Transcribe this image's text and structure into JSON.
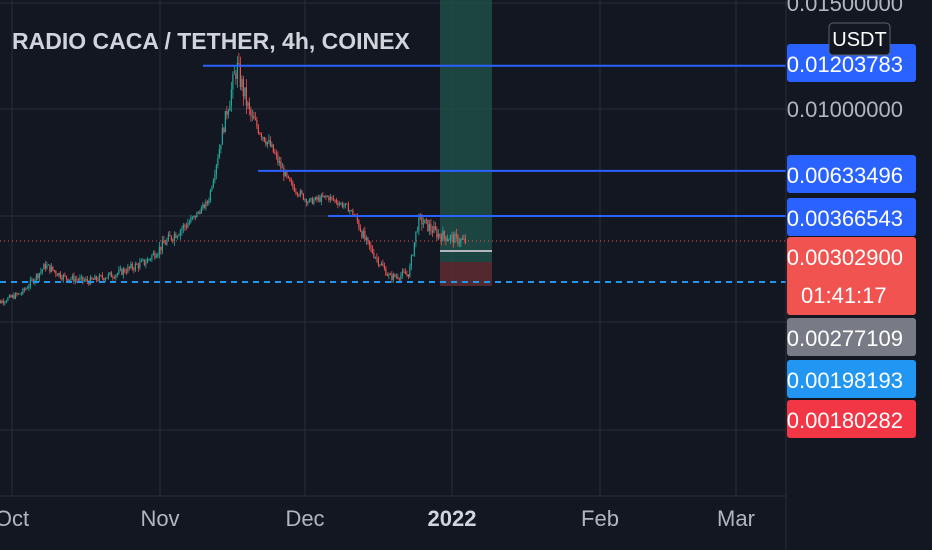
{
  "header": {
    "title": "RADIO CACA / TETHER, 4h, COINEX"
  },
  "currency_unit": "USDT",
  "price_axis": {
    "labels": [
      {
        "text": "0.01500000",
        "value": 0.015
      },
      {
        "text": "0.01000000",
        "value": 0.01
      }
    ]
  },
  "time_axis": {
    "labels": [
      {
        "text": "Oct",
        "bold": false
      },
      {
        "text": "Nov",
        "bold": false
      },
      {
        "text": "Dec",
        "bold": false
      },
      {
        "text": "2022",
        "bold": true
      },
      {
        "text": "Feb",
        "bold": false
      },
      {
        "text": "Mar",
        "bold": false
      }
    ]
  },
  "price_badges": [
    {
      "key": "level_top",
      "text": "0.01203783",
      "value": 0.01203783,
      "color": "#2962ff"
    },
    {
      "key": "level_mid",
      "text": "0.00633496",
      "value": 0.00633496,
      "color": "#2962ff"
    },
    {
      "key": "level_low",
      "text": "0.00366543",
      "value": 0.00366543,
      "color": "#2962ff"
    },
    {
      "key": "last_price",
      "text": "0.00302900",
      "value": 0.003029,
      "color": "#f05350",
      "countdown": "01:41:17"
    },
    {
      "key": "position_entry",
      "text": "0.00277109",
      "value": 0.00277109,
      "color": "#787b86"
    },
    {
      "key": "dashed_level",
      "text": "0.00198193",
      "value": 0.00198193,
      "color": "#2196f3"
    },
    {
      "key": "stop_level",
      "text": "0.00180282",
      "value": 0.00180282,
      "color": "#f23645"
    }
  ],
  "colors": {
    "background": "#131722",
    "grid": "#2a2e39",
    "up": "#26a69a",
    "down": "#ef5350",
    "horizontal_line": "#2962ff",
    "current_price_line": "#f05350",
    "dashed_line": "#2196f3",
    "profit_zone": "#1e4d48",
    "loss_zone": "#5b2a30"
  },
  "chart_data": {
    "type": "candlestick",
    "title": "RADIO CACA / TETHER, 4h, COINEX",
    "interval": "4h",
    "y_unit": "USDT",
    "x_ticks": [
      "Oct",
      "Nov",
      "Dec",
      "2022",
      "Feb",
      "Mar"
    ],
    "close_path": [
      {
        "date": "2021-09-27",
        "close": 0.0014
      },
      {
        "date": "2021-10-03",
        "close": 0.0017
      },
      {
        "date": "2021-10-08",
        "close": 0.0024
      },
      {
        "date": "2021-10-12",
        "close": 0.0021
      },
      {
        "date": "2021-10-17",
        "close": 0.002
      },
      {
        "date": "2021-10-23",
        "close": 0.0022
      },
      {
        "date": "2021-10-29",
        "close": 0.0025
      },
      {
        "date": "2021-11-03",
        "close": 0.0031
      },
      {
        "date": "2021-11-08",
        "close": 0.0036
      },
      {
        "date": "2021-11-11",
        "close": 0.0045
      },
      {
        "date": "2021-11-13",
        "close": 0.0072
      },
      {
        "date": "2021-11-15",
        "close": 0.01
      },
      {
        "date": "2021-11-17",
        "close": 0.012
      },
      {
        "date": "2021-11-20",
        "close": 0.0095
      },
      {
        "date": "2021-11-24",
        "close": 0.0078
      },
      {
        "date": "2021-11-28",
        "close": 0.0056
      },
      {
        "date": "2021-12-02",
        "close": 0.0045
      },
      {
        "date": "2021-12-06",
        "close": 0.0048
      },
      {
        "date": "2021-12-10",
        "close": 0.0042
      },
      {
        "date": "2021-12-14",
        "close": 0.003
      },
      {
        "date": "2021-12-19",
        "close": 0.0021
      },
      {
        "date": "2021-12-23",
        "close": 0.0022
      },
      {
        "date": "2021-12-25",
        "close": 0.0036
      },
      {
        "date": "2021-12-29",
        "close": 0.0032
      },
      {
        "date": "2022-01-04",
        "close": 0.003
      }
    ],
    "horizontal_levels": [
      0.01203783,
      0.00633496,
      0.00366543,
      0.00198193
    ],
    "last_price": 0.003029,
    "y_labels": [
      0.015,
      0.01
    ]
  }
}
